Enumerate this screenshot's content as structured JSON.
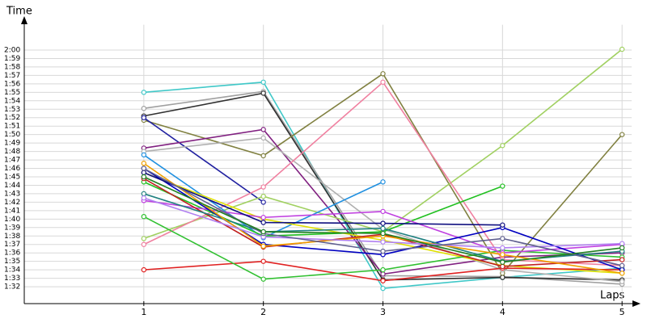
{
  "chart_data": {
    "type": "line",
    "x_label": "Laps",
    "y_label": "Time",
    "xlim": [
      0,
      5.08
    ],
    "xticks": [
      1,
      2,
      3,
      4,
      5
    ],
    "ylim": [
      90,
      123
    ],
    "yticks": [
      {
        "value": 92,
        "label": "1:32"
      },
      {
        "value": 93,
        "label": "1:33"
      },
      {
        "value": 94,
        "label": "1:34"
      },
      {
        "value": 95,
        "label": "1:35"
      },
      {
        "value": 96,
        "label": "1:36"
      },
      {
        "value": 97,
        "label": "1:37"
      },
      {
        "value": 98,
        "label": "1:38"
      },
      {
        "value": 99,
        "label": "1:39"
      },
      {
        "value": 100,
        "label": "1:40"
      },
      {
        "value": 101,
        "label": "1:41"
      },
      {
        "value": 102,
        "label": "1:42"
      },
      {
        "value": 103,
        "label": "1:43"
      },
      {
        "value": 104,
        "label": "1:44"
      },
      {
        "value": 105,
        "label": "1:45"
      },
      {
        "value": 106,
        "label": "1:46"
      },
      {
        "value": 107,
        "label": "1:47"
      },
      {
        "value": 108,
        "label": "1:48"
      },
      {
        "value": 109,
        "label": "1:49"
      },
      {
        "value": 110,
        "label": "1:50"
      },
      {
        "value": 111,
        "label": "1:51"
      },
      {
        "value": 112,
        "label": "1:52"
      },
      {
        "value": 113,
        "label": "1:53"
      },
      {
        "value": 114,
        "label": "1:54"
      },
      {
        "value": 115,
        "label": "1:55"
      },
      {
        "value": 116,
        "label": "1:56"
      },
      {
        "value": 117,
        "label": "1:57"
      },
      {
        "value": 118,
        "label": "1:58"
      },
      {
        "value": 119,
        "label": "1:59"
      },
      {
        "value": 120,
        "label": "2:00"
      }
    ],
    "grid": true,
    "x": [
      1,
      2,
      3,
      4,
      5
    ],
    "series": [
      {
        "color": "#40c8c8",
        "values": [
          115.0,
          116.2,
          91.8,
          93.1,
          94.2
        ]
      },
      {
        "color": "#a0a0a0",
        "values": [
          113.1,
          115.1,
          93.3,
          93.2,
          92.3
        ]
      },
      {
        "color": "#303030",
        "values": [
          112.2,
          114.9,
          92.8,
          93.1,
          92.8
        ]
      },
      {
        "color": "#808040",
        "values": [
          111.7,
          107.5,
          117.2,
          93.6,
          110.0
        ]
      },
      {
        "color": "#2020a0",
        "values": [
          112.0,
          102.0,
          null,
          null,
          null
        ]
      },
      {
        "color": "#802080",
        "values": [
          108.4,
          110.6,
          93.5,
          95.5,
          96.0
        ]
      },
      {
        "color": "#b0b0b0",
        "values": [
          108.0,
          109.6,
          98.8,
          94.0,
          92.6
        ]
      },
      {
        "color": "#a0d060",
        "values": [
          97.7,
          102.7,
          98.5,
          108.7,
          120.1
        ]
      },
      {
        "color": "#f080a0",
        "values": [
          97.0,
          103.8,
          116.2,
          95.2,
          94.5
        ]
      },
      {
        "color": "#2090e0",
        "values": [
          107.6,
          97.8,
          104.4,
          null,
          null
        ]
      },
      {
        "color": "#20c020",
        "values": [
          104.4,
          98.0,
          98.5,
          103.9,
          null
        ]
      },
      {
        "color": "#e0e000",
        "values": [
          105.5,
          100.0,
          97.5,
          94.5,
          93.6
        ]
      },
      {
        "color": "#e02020",
        "values": [
          94.0,
          95.0,
          92.7,
          94.2,
          94.0
        ]
      },
      {
        "color": "#30c030",
        "values": [
          100.3,
          92.9,
          94.0,
          96.3,
          95.5
        ]
      },
      {
        "color": "#c040e0",
        "values": [
          102.2,
          100.2,
          100.9,
          96.0,
          97.0
        ]
      },
      {
        "color": "#0000c0",
        "values": [
          106.0,
          97.0,
          95.8,
          99.0,
          94.0
        ]
      },
      {
        "color": "#c02020",
        "values": [
          104.8,
          96.7,
          98.2,
          94.4,
          95.2
        ]
      },
      {
        "color": "#208080",
        "values": [
          103.0,
          98.5,
          98.9,
          95.0,
          96.2
        ]
      },
      {
        "color": "#101080",
        "values": [
          105.5,
          99.6,
          99.5,
          99.3,
          null
        ]
      },
      {
        "color": "#f0a000",
        "values": [
          106.6,
          96.8,
          98.0,
          95.8,
          93.6
        ]
      },
      {
        "color": "#b080f0",
        "values": [
          102.5,
          97.9,
          97.3,
          96.6,
          97.1
        ]
      },
      {
        "color": "#606090",
        "values": [
          106.0,
          98.3,
          96.2,
          97.7,
          94.5
        ]
      },
      {
        "color": "#208020",
        "values": [
          105.0,
          98.5,
          98.3,
          94.9,
          96.6
        ]
      }
    ]
  }
}
